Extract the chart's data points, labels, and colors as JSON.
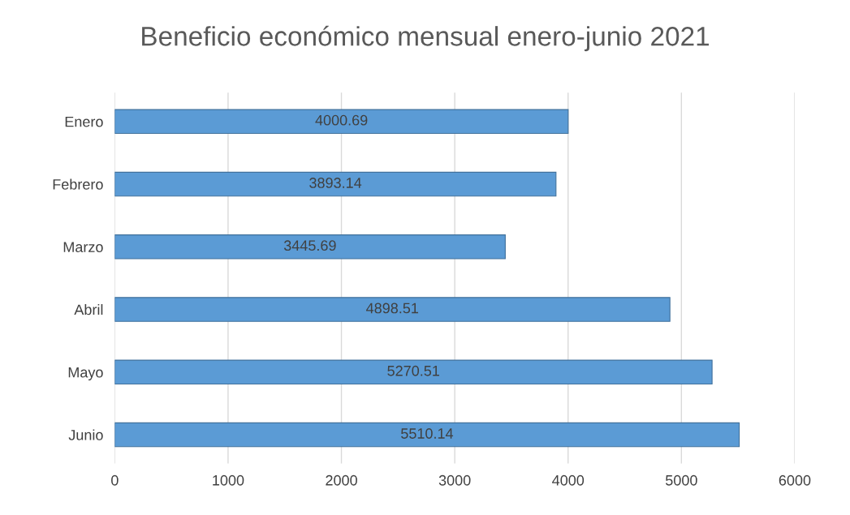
{
  "chart_data": {
    "type": "bar",
    "orientation": "horizontal",
    "title": "Beneficio económico mensual enero-junio 2021",
    "categories": [
      "Enero",
      "Febrero",
      "Marzo",
      "Abril",
      "Mayo",
      "Junio"
    ],
    "values": [
      4000.69,
      3893.14,
      3445.69,
      4898.51,
      5270.51,
      5510.14
    ],
    "color": "#5b9bd5",
    "data_labels": true,
    "grid": "x",
    "xlim": [
      0,
      6000
    ],
    "xticks": [
      0,
      1000,
      2000,
      3000,
      4000,
      5000,
      6000
    ]
  }
}
